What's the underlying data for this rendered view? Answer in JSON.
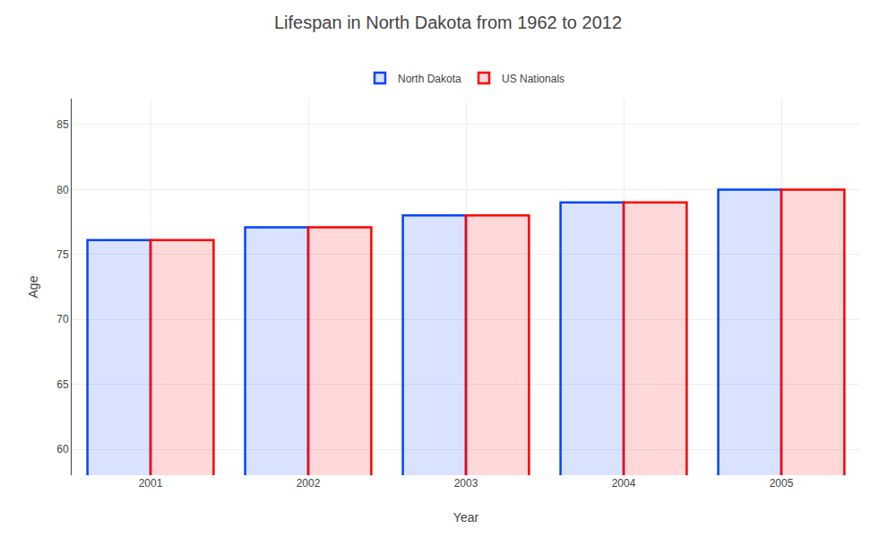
{
  "chart_data": {
    "type": "bar",
    "title": "Lifespan in North Dakota from 1962 to 2012",
    "xlabel": "Year",
    "ylabel": "Age",
    "categories": [
      "2001",
      "2002",
      "2003",
      "2004",
      "2005"
    ],
    "series": [
      {
        "name": "North Dakota",
        "color": "#0044ff",
        "values": [
          76.1,
          77.1,
          78.0,
          79.0,
          80.0
        ]
      },
      {
        "name": "US Nationals",
        "color": "#ff0000",
        "values": [
          76.1,
          77.1,
          78.0,
          79.0,
          80.0
        ]
      }
    ],
    "ylim": [
      58,
      87
    ],
    "yticks": [
      60,
      65,
      70,
      75,
      80,
      85
    ],
    "grid": true,
    "legend": "top"
  }
}
